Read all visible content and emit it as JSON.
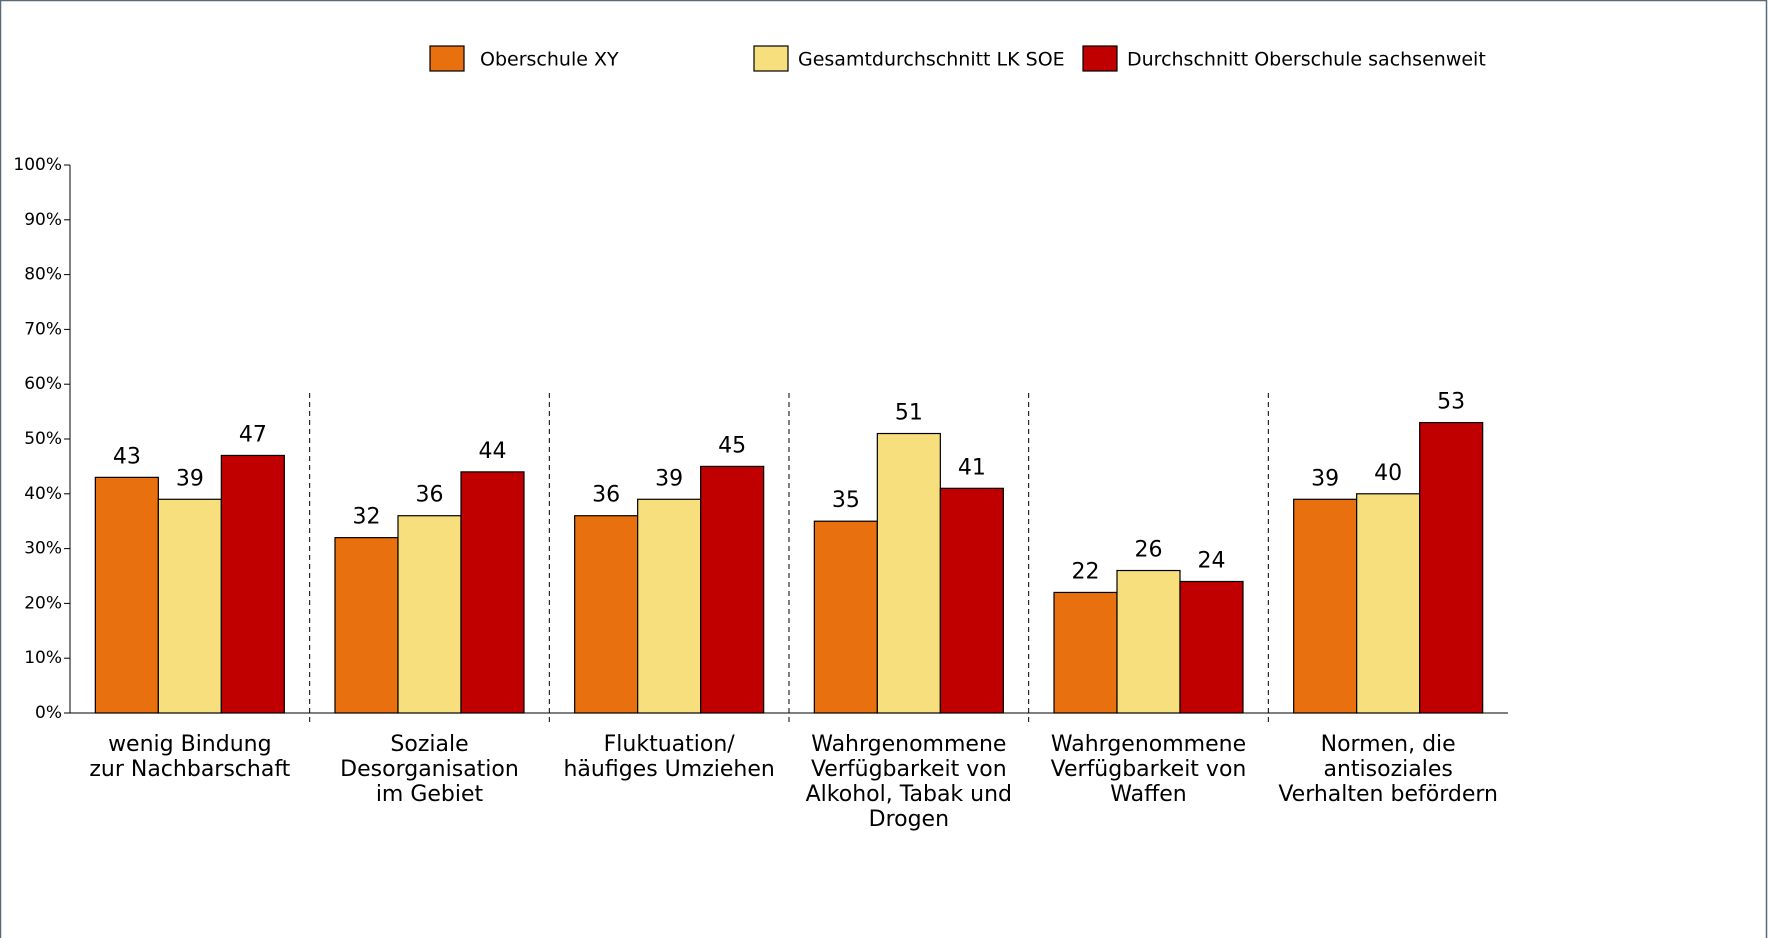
{
  "chart_data": {
    "type": "bar",
    "categories": [
      "wenig Bindung\nzur Nachbarschaft",
      "Soziale\nDesorganisation\nim Gebiet",
      "Fluktuation/\nhäufiges Umziehen",
      "Wahrgenommene\nVerfügbarkeit von\nAlkohol, Tabak und\nDrogen",
      "Wahrgenommene\nVerfügbarkeit von\nWaffen",
      "Normen, die\nantisoziales\nVerhalten befördern"
    ],
    "series": [
      {
        "name": "Oberschule XY",
        "color": "#e8700f",
        "values": [
          43,
          32,
          36,
          35,
          22,
          39
        ]
      },
      {
        "name": "Gesamtdurchschnitt LK SOE",
        "color": "#f8df7e",
        "values": [
          39,
          36,
          39,
          51,
          26,
          40
        ]
      },
      {
        "name": "Durchschnitt Oberschule sachsenweit",
        "color": "#c00000",
        "values": [
          47,
          44,
          45,
          41,
          24,
          53
        ]
      }
    ],
    "ylim": [
      0,
      100
    ],
    "yticks": [
      {
        "value": 0,
        "label": "0%"
      },
      {
        "value": 10,
        "label": "10%"
      },
      {
        "value": 20,
        "label": "20%"
      },
      {
        "value": 30,
        "label": "30%"
      },
      {
        "value": 40,
        "label": "40%"
      },
      {
        "value": 50,
        "label": "50%"
      },
      {
        "value": 60,
        "label": "60%"
      },
      {
        "value": 70,
        "label": "70%"
      },
      {
        "value": 80,
        "label": "80%"
      },
      {
        "value": 90,
        "label": "90%"
      },
      {
        "value": 100,
        "label": "100%"
      }
    ],
    "legend": "top"
  }
}
